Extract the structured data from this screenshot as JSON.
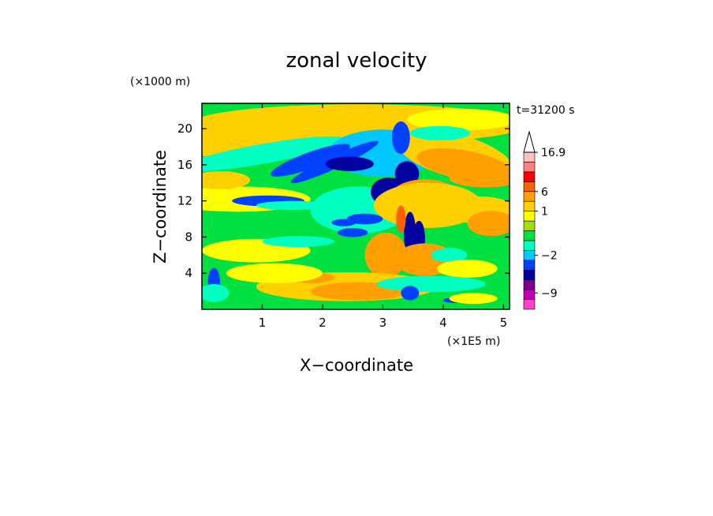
{
  "chart_data": {
    "type": "heatmap",
    "title": "zonal velocity",
    "xlabel": "X−coordinate",
    "ylabel": "Z−coordinate",
    "x_unit": "(×1E5 m)",
    "y_unit": "(×1000 m)",
    "time_label": "t=31200 s",
    "xlim": [
      0,
      5.1
    ],
    "ylim": [
      0,
      22.8
    ],
    "x_ticks": [
      1,
      2,
      3,
      4,
      5
    ],
    "y_ticks": [
      4,
      8,
      12,
      16,
      20
    ],
    "colorbar": {
      "max_label": "16.9",
      "tick_labels": [
        "16.9",
        "6",
        "1",
        "−2",
        "−9"
      ],
      "tick_values": [
        16.9,
        6,
        1,
        -2,
        -9
      ],
      "levels": [
        {
          "color": "#ff40c8",
          "range": [
            -14,
            -11
          ]
        },
        {
          "color": "#c000b0",
          "range": [
            -11,
            -8
          ]
        },
        {
          "color": "#800090",
          "range": [
            -8,
            -5
          ]
        },
        {
          "color": "#0000a0",
          "range": [
            -5,
            -3.5
          ]
        },
        {
          "color": "#0040ff",
          "range": [
            -3.5,
            -2.5
          ]
        },
        {
          "color": "#00c8ff",
          "range": [
            -2.5,
            -1.5
          ]
        },
        {
          "color": "#00ffc0",
          "range": [
            -1.5,
            -0.8
          ]
        },
        {
          "color": "#00e040",
          "range": [
            -0.8,
            0
          ]
        },
        {
          "color": "#a0e000",
          "range": [
            0,
            0.5
          ]
        },
        {
          "color": "#ffff00",
          "range": [
            0.5,
            1
          ]
        },
        {
          "color": "#ffd000",
          "range": [
            1,
            2
          ]
        },
        {
          "color": "#ffa000",
          "range": [
            2,
            6
          ]
        },
        {
          "color": "#ff6000",
          "range": [
            6,
            9
          ]
        },
        {
          "color": "#ff0000",
          "range": [
            9,
            12
          ]
        },
        {
          "color": "#ff8080",
          "range": [
            12,
            14.5
          ]
        },
        {
          "color": "#ffc0c0",
          "range": [
            14.5,
            16.9
          ]
        }
      ]
    },
    "field_features": [
      {
        "desc": "strong negative jet",
        "x": 2.2,
        "z": 16.3,
        "value": -4
      },
      {
        "desc": "negative core",
        "x": 3.2,
        "z": 13,
        "value": -4
      },
      {
        "desc": "positive core",
        "x": 3.6,
        "z": 12.5,
        "value": 8
      },
      {
        "desc": "negative column",
        "x": 3.45,
        "z": 8,
        "value": -4
      },
      {
        "desc": "positive region",
        "x": 4.3,
        "z": 16,
        "value": 3
      },
      {
        "desc": "positive region",
        "x": 3.7,
        "z": 6,
        "value": 3
      },
      {
        "desc": "positive surface region",
        "x": 2.5,
        "z": 2,
        "value": 3
      },
      {
        "desc": "negative low-level",
        "x": 0.2,
        "z": 3,
        "value": -3
      }
    ]
  }
}
